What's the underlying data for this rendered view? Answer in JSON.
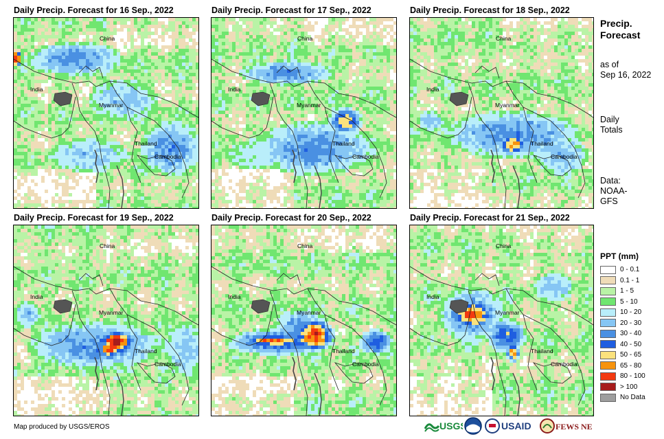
{
  "panels": [
    {
      "title": "Daily Precip. Forecast for 16 Sep., 2022"
    },
    {
      "title": "Daily Precip. Forecast for 17 Sep., 2022"
    },
    {
      "title": "Daily Precip. Forecast for 18 Sep., 2022"
    },
    {
      "title": "Daily Precip. Forecast for 19 Sep., 2022"
    },
    {
      "title": "Daily Precip. Forecast for 20 Sep., 2022"
    },
    {
      "title": "Daily Precip. Forecast for 21 Sep., 2022"
    }
  ],
  "places": {
    "china": "China",
    "india": "India",
    "myanmar": "Myanmar",
    "thailand": "Thailand",
    "cambodia": "Cambodia"
  },
  "sidebar": {
    "title_line1": "Precip.",
    "title_line2": "Forecast",
    "asof_line1": "as of",
    "asof_line2": "Sep 16, 2022",
    "totals_line1": "Daily",
    "totals_line2": "Totals",
    "data_line1": "Data:",
    "data_line2": "NOAA-",
    "data_line3": "GFS"
  },
  "legend": {
    "title": "PPT (mm)",
    "items": [
      {
        "label": "0 - 0.1",
        "color": "#ffffff"
      },
      {
        "label": "0.1 - 1",
        "color": "#efdcb8"
      },
      {
        "label": "1 - 5",
        "color": "#b9f3a6"
      },
      {
        "label": "5 - 10",
        "color": "#70e670"
      },
      {
        "label": "10 - 20",
        "color": "#b9eefa"
      },
      {
        "label": "20 - 30",
        "color": "#86c6f4"
      },
      {
        "label": "30 - 40",
        "color": "#4a90e2"
      },
      {
        "label": "40 - 50",
        "color": "#1f5ee0"
      },
      {
        "label": "50 - 65",
        "color": "#fbe27d"
      },
      {
        "label": "65 - 80",
        "color": "#f7930e"
      },
      {
        "label": "80 - 100",
        "color": "#f33a10"
      },
      {
        "label": "> 100",
        "color": "#a71c1c"
      },
      {
        "label": "No Data",
        "color": "#9e9e9e"
      }
    ]
  },
  "footer": {
    "credit": "Map produced by USGS/EROS",
    "usgs": "USGS",
    "usaid": "USAID",
    "fewsnet": "FEWS NET"
  }
}
